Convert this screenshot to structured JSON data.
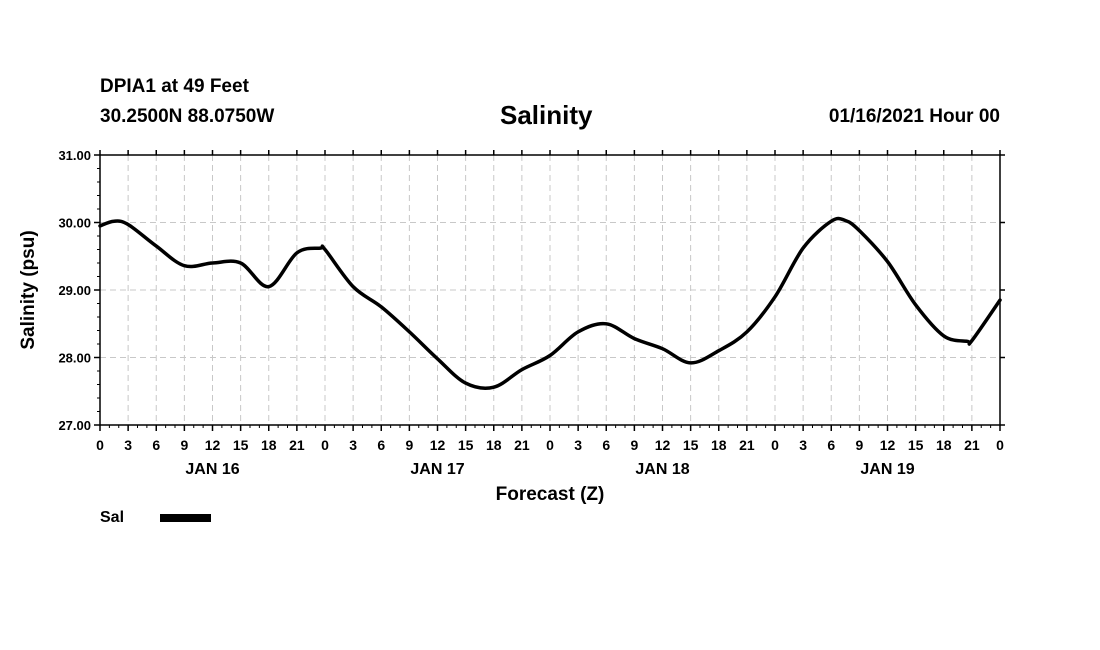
{
  "header": {
    "station": "DPIA1 at 49 Feet",
    "coords": "30.2500N 88.0750W",
    "title": "Salinity",
    "date": "01/16/2021 Hour 00"
  },
  "legend": {
    "label": "Sal",
    "color": "#000000"
  },
  "chart_data": {
    "type": "line",
    "title": "Salinity",
    "xlabel": "Forecast (Z)",
    "ylabel": "Salinity (psu)",
    "ylim": [
      27.0,
      31.0
    ],
    "yticks": [
      "27.00",
      "28.00",
      "29.00",
      "30.00",
      "31.00"
    ],
    "xlim_hours": [
      0,
      96
    ],
    "xtick_labels": [
      "0",
      "3",
      "6",
      "9",
      "12",
      "15",
      "18",
      "21",
      "0",
      "3",
      "6",
      "9",
      "12",
      "15",
      "18",
      "21",
      "0",
      "3",
      "6",
      "9",
      "12",
      "15",
      "18",
      "21",
      "0",
      "3",
      "6",
      "9",
      "12",
      "15",
      "18",
      "21",
      "0"
    ],
    "day_labels": [
      {
        "label": "JAN 16",
        "hour": 12
      },
      {
        "label": "JAN 17",
        "hour": 36
      },
      {
        "label": "JAN 18",
        "hour": 60
      },
      {
        "label": "JAN 19",
        "hour": 84
      }
    ],
    "grid": true,
    "series": [
      {
        "name": "Sal",
        "x": [
          0,
          1.5,
          3,
          6,
          9,
          12,
          15,
          18,
          21,
          23.5,
          24,
          27,
          30,
          33,
          36,
          39,
          42,
          45,
          48,
          51,
          54,
          57,
          60,
          63,
          66,
          69,
          72,
          75,
          78,
          79.5,
          81,
          84,
          87,
          90,
          92.5,
          93,
          96
        ],
        "y": [
          29.95,
          30.02,
          29.97,
          29.65,
          29.36,
          29.4,
          29.4,
          29.05,
          29.55,
          29.62,
          29.6,
          29.05,
          28.75,
          28.38,
          27.98,
          27.62,
          27.56,
          27.82,
          28.03,
          28.38,
          28.5,
          28.28,
          28.13,
          27.92,
          28.1,
          28.38,
          28.9,
          29.62,
          30.02,
          30.03,
          29.88,
          29.42,
          28.78,
          28.32,
          28.24,
          28.25,
          28.85
        ]
      }
    ]
  }
}
